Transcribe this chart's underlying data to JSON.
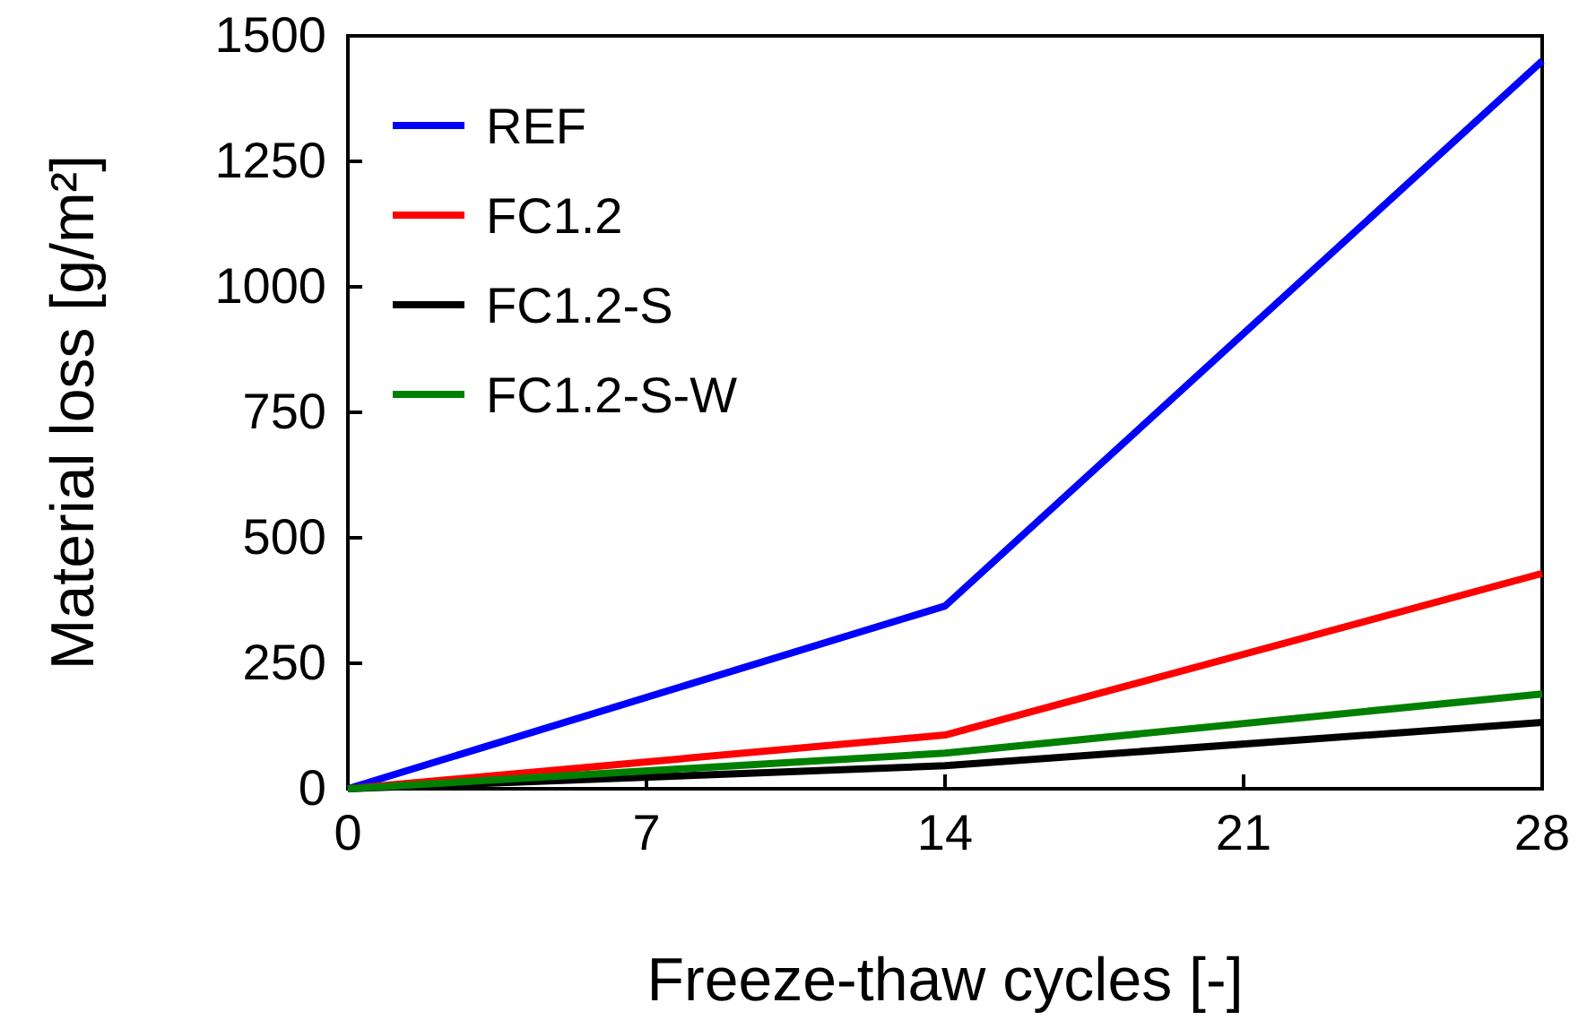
{
  "chart_data": {
    "type": "line",
    "xlabel": "Freeze-thaw cycles [-]",
    "ylabel": "Material loss  [g/m²]",
    "x": [
      0,
      14,
      28
    ],
    "series": [
      {
        "name": "REF",
        "color": "#0000ff",
        "values": [
          0,
          364,
          1450
        ]
      },
      {
        "name": "FC1.2",
        "color": "#ff0000",
        "values": [
          0,
          107,
          429
        ]
      },
      {
        "name": "FC1.2-S",
        "color": "#000000",
        "values": [
          0,
          46,
          132
        ]
      },
      {
        "name": "FC1.2-S-W",
        "color": "#008000",
        "values": [
          0,
          71,
          189
        ]
      }
    ],
    "xlim": [
      0,
      28
    ],
    "xticks": [
      0,
      7,
      14,
      21,
      28
    ],
    "ylim": [
      0,
      1500
    ],
    "yticks": [
      0,
      250,
      500,
      750,
      1000,
      1250,
      1500
    ],
    "grid": false,
    "legend": "top left",
    "marker": "none",
    "line_style": "solid"
  }
}
